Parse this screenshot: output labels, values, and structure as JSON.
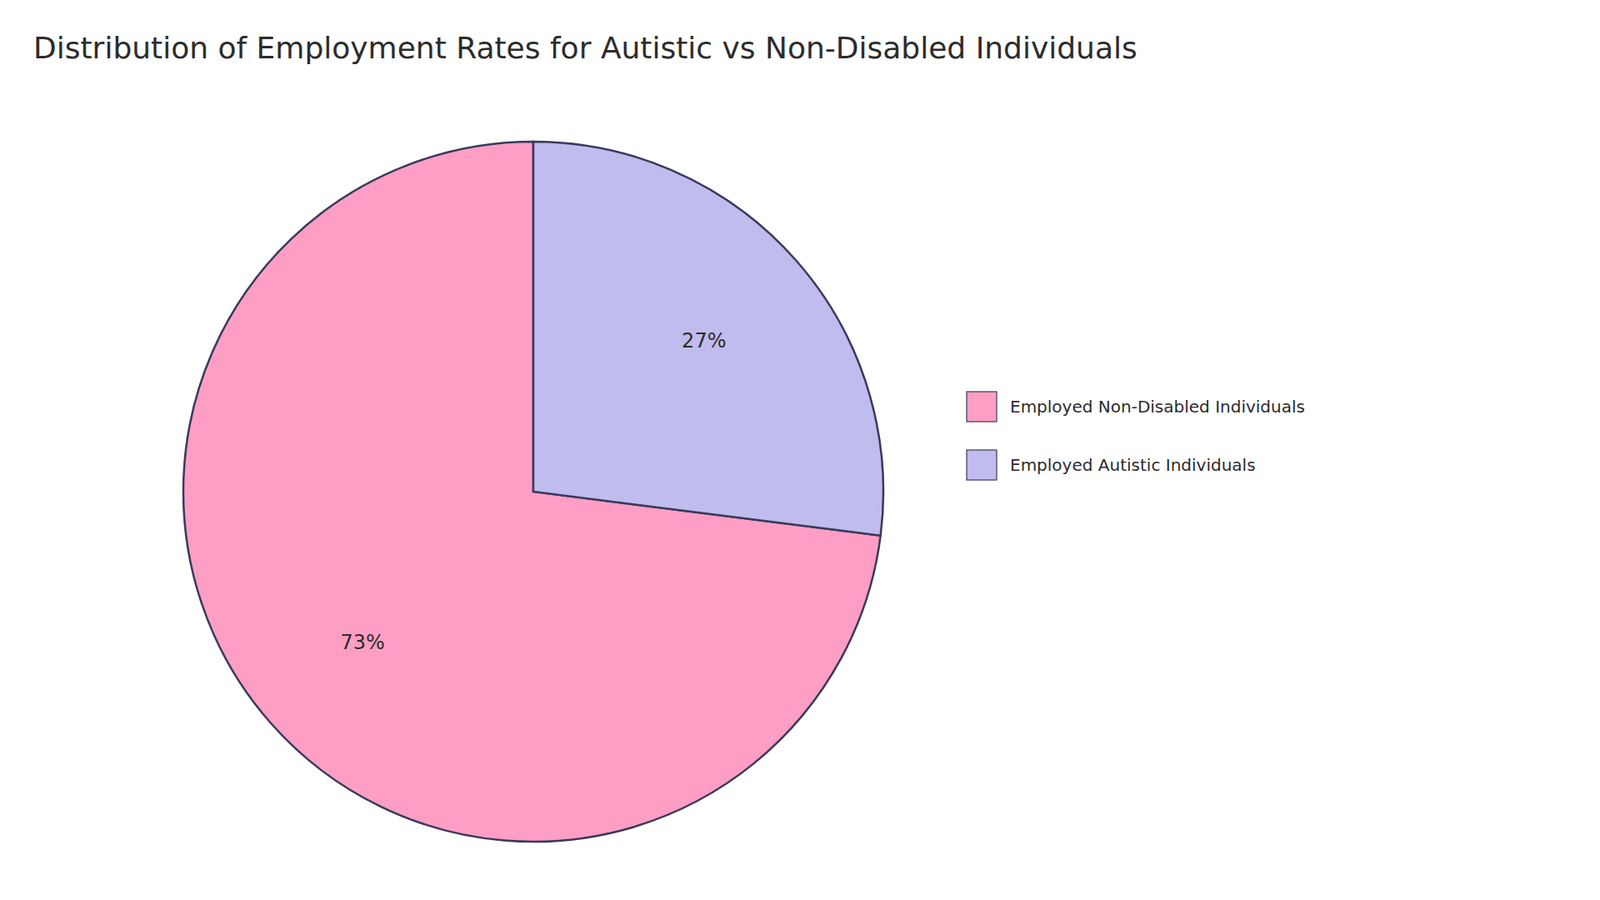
{
  "chart_data": {
    "type": "pie",
    "title": "Distribution of Employment Rates for Autistic vs Non-Disabled Individuals",
    "categories": [
      "Employed Non-Disabled Individuals",
      "Employed Autistic Individuals"
    ],
    "values": [
      73,
      27
    ],
    "value_labels": [
      "73%",
      "27%"
    ],
    "colors": [
      "#FF9EC4",
      "#C0BCEE"
    ],
    "data_labels": true,
    "legend": "right"
  }
}
